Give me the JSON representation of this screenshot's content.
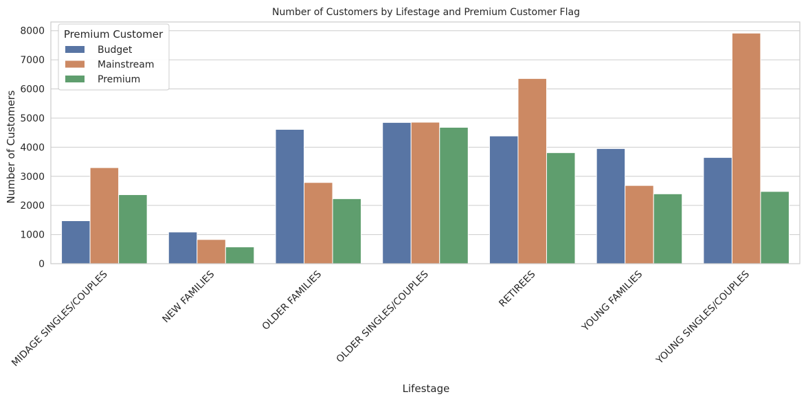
{
  "chart_data": {
    "type": "bar",
    "title": "Number of Customers by Lifestage and Premium Customer Flag",
    "xlabel": "Lifestage",
    "ylabel": "Number of Customers",
    "ylim": [
      0,
      8300
    ],
    "yticks": [
      0,
      1000,
      2000,
      3000,
      4000,
      5000,
      6000,
      7000,
      8000
    ],
    "grid": true,
    "legend": {
      "title": "Premium Customer",
      "placement": "top-left"
    },
    "categories": [
      "MIDAGE SINGLES/COUPLES",
      "NEW FAMILIES",
      "OLDER FAMILIES",
      "OLDER SINGLES/COUPLES",
      "RETIREES",
      "YOUNG FAMILIES",
      "YOUNG SINGLES/COUPLES"
    ],
    "series": [
      {
        "name": "Budget",
        "color": "#5875a4",
        "values": [
          1474,
          1087,
          4611,
          4849,
          4385,
          3953,
          3647
        ]
      },
      {
        "name": "Mainstream",
        "color": "#cc8963",
        "values": [
          3298,
          830,
          2788,
          4858,
          6358,
          2685,
          7917
        ]
      },
      {
        "name": "Premium",
        "color": "#5f9e6e",
        "values": [
          2369,
          575,
          2231,
          4682,
          3812,
          2398,
          2480
        ]
      }
    ]
  }
}
